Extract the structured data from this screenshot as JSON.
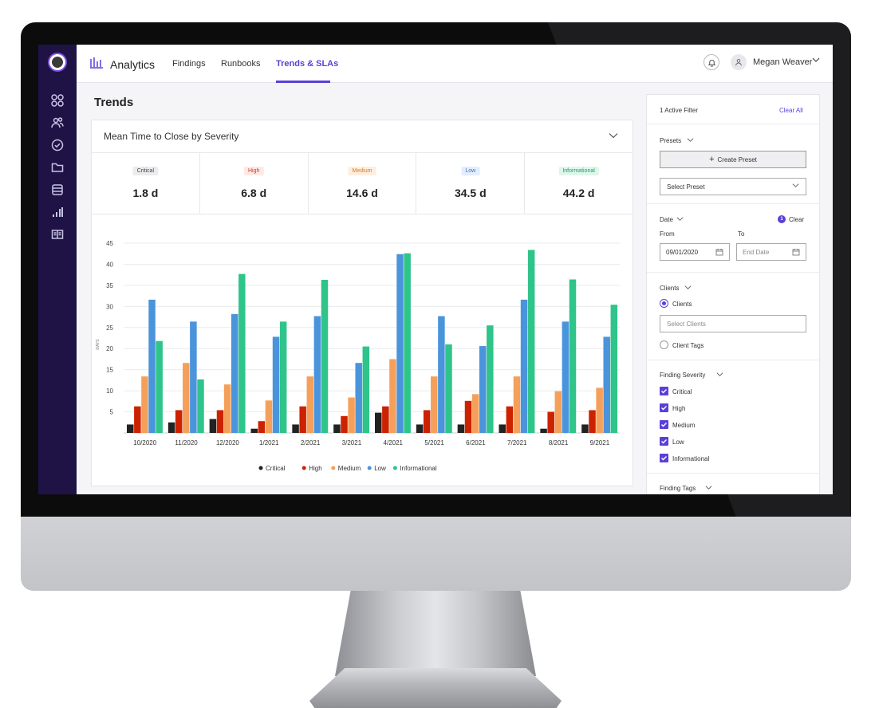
{
  "app": {
    "brand_label": "Analytics",
    "nav": [
      "Findings",
      "Runbooks",
      "Trends & SLAs"
    ],
    "active_nav": "Trends & SLAs",
    "user_name": "Megan Weaver"
  },
  "page": {
    "title": "Trends"
  },
  "card": {
    "title": "Mean Time to Close by Severity",
    "stats": [
      {
        "label": "Critical",
        "value": "1.8 d",
        "bg": "#ececef",
        "fg": "#444444"
      },
      {
        "label": "High",
        "value": "6.8 d",
        "bg": "#fde9e6",
        "fg": "#d23a1e"
      },
      {
        "label": "Medium",
        "value": "14.6 d",
        "bg": "#fdeedd",
        "fg": "#e07a2a"
      },
      {
        "label": "Low",
        "value": "34.5 d",
        "bg": "#e3edfb",
        "fg": "#3b73c9"
      },
      {
        "label": "Informational",
        "value": "44.2 d",
        "bg": "#e0f6ec",
        "fg": "#1e9e63"
      }
    ]
  },
  "chart_data": {
    "type": "bar",
    "ylabel": "DAYS",
    "ylim": [
      0,
      45
    ],
    "yticks": [
      5,
      10,
      15,
      20,
      25,
      30,
      35,
      40,
      45
    ],
    "grid": true,
    "legend_position": "bottom-center",
    "categories": [
      "10/2020",
      "11/2020",
      "12/2020",
      "1/2021",
      "2/2021",
      "3/2021",
      "4/2021",
      "5/2021",
      "6/2021",
      "7/2021",
      "8/2021",
      "9/2021"
    ],
    "series": [
      {
        "name": "Critical",
        "color": "#222222",
        "values": [
          2,
          2.5,
          3.3,
          1,
          2,
          2,
          4.8,
          2,
          2,
          2,
          1,
          2
        ]
      },
      {
        "name": "High",
        "color": "#cc2200",
        "values": [
          6.3,
          5.4,
          5.4,
          2.8,
          6.3,
          4,
          6.3,
          5.4,
          7.6,
          6.3,
          5,
          5.4
        ]
      },
      {
        "name": "Medium",
        "color": "#f5a05a",
        "values": [
          13.4,
          16.6,
          11.5,
          7.7,
          13.4,
          8.4,
          17.5,
          13.4,
          9.2,
          13.4,
          9.9,
          10.7
        ]
      },
      {
        "name": "Low",
        "color": "#4a94dc",
        "values": [
          31.6,
          26.4,
          28.2,
          22.8,
          27.7,
          16.6,
          42.4,
          27.7,
          20.6,
          31.6,
          26.4,
          22.8
        ]
      },
      {
        "name": "Informational",
        "color": "#2ec48a",
        "values": [
          21.8,
          12.7,
          37.7,
          26.4,
          36.3,
          20.5,
          42.6,
          21,
          25.5,
          43.4,
          36.4,
          30.4
        ]
      }
    ]
  },
  "filters": {
    "active_label": "1 Active Filter",
    "clear_all": "Clear All",
    "presets_label": "Presets",
    "create_preset": "Create Preset",
    "select_preset": "Select Preset",
    "date_label": "Date",
    "date_badge": "1",
    "clear": "Clear",
    "from_label": "From",
    "to_label": "To",
    "from_value": "09/01/2020",
    "to_placeholder": "End Date",
    "clients_label": "Clients",
    "clients_radio": "Clients",
    "select_clients": "Select Clients",
    "client_tags": "Client Tags",
    "severity_label": "Finding Severity",
    "severities": [
      "Critical",
      "High",
      "Medium",
      "Low",
      "Informational"
    ],
    "tags_label": "Finding Tags"
  }
}
